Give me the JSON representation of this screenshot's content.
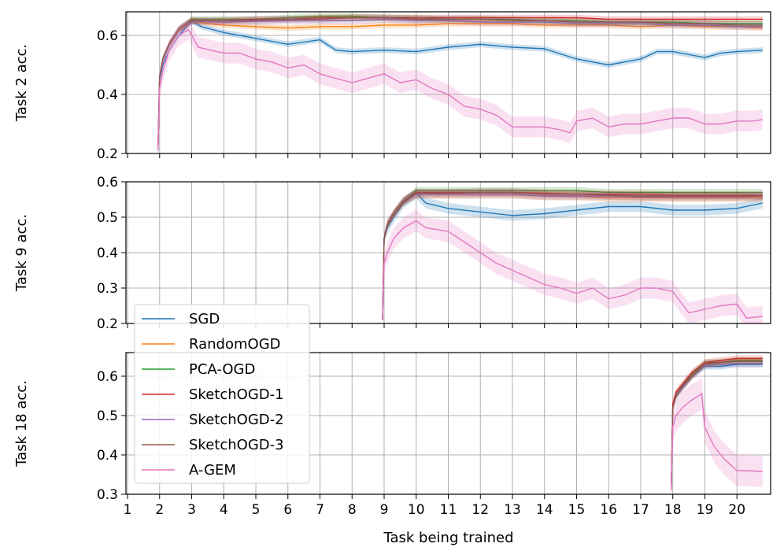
{
  "chart_data": {
    "type": "line",
    "xlabel": "Task being trained",
    "x_ticks": [
      1,
      2,
      3,
      4,
      5,
      6,
      7,
      8,
      9,
      10,
      11,
      12,
      13,
      14,
      15,
      16,
      17,
      18,
      19,
      20
    ],
    "x_range": [
      0.95,
      21.05
    ],
    "grid": true,
    "legend": {
      "position": "bottom-left",
      "entries": [
        "SGD",
        "RandomOGD",
        "PCA-OGD",
        "SketchOGD-1",
        "SketchOGD-2",
        "SketchOGD-3",
        "A-GEM"
      ]
    },
    "colors": {
      "SGD": "#1f77b4",
      "RandomOGD": "#ff7f0e",
      "PCA-OGD": "#2ca02c",
      "SketchOGD-1": "#d62728",
      "SketchOGD-2": "#9467bd",
      "SketchOGD-3": "#8c564b",
      "A-GEM": "#e377c2"
    },
    "panels": [
      {
        "ylabel": "Task 2 acc.",
        "ylim": [
          0.2,
          0.68
        ],
        "yticks": [
          0.2,
          0.4,
          0.6
        ],
        "ytick_labels": [
          "0.2",
          "0.4",
          "0.6"
        ],
        "series": [
          {
            "name": "SGD",
            "x": [
              1.95,
              2,
              2.1,
              2.3,
              2.6,
              3,
              3.3,
              4,
              5,
              6,
              7,
              7.5,
              8,
              9,
              10,
              11,
              12,
              13,
              14,
              15,
              16,
              17,
              17.5,
              18,
              19,
              19.5,
              20,
              20.8
            ],
            "y": [
              0.21,
              0.45,
              0.5,
              0.55,
              0.6,
              0.648,
              0.63,
              0.61,
              0.59,
              0.57,
              0.585,
              0.55,
              0.545,
              0.55,
              0.545,
              0.56,
              0.57,
              0.56,
              0.555,
              0.52,
              0.5,
              0.52,
              0.545,
              0.545,
              0.525,
              0.54,
              0.545,
              0.55
            ],
            "band": 0.01
          },
          {
            "name": "RandomOGD",
            "x": [
              1.95,
              2,
              2.1,
              2.3,
              2.6,
              3,
              3.5,
              4,
              5,
              6,
              7,
              8,
              9,
              10,
              11,
              12,
              13,
              14,
              15,
              16,
              17,
              18,
              19,
              20,
              20.8
            ],
            "y": [
              0.21,
              0.46,
              0.52,
              0.57,
              0.62,
              0.65,
              0.64,
              0.635,
              0.63,
              0.625,
              0.63,
              0.63,
              0.635,
              0.635,
              0.64,
              0.64,
              0.64,
              0.635,
              0.635,
              0.635,
              0.63,
              0.635,
              0.63,
              0.63,
              0.625
            ],
            "band": 0.01
          },
          {
            "name": "PCA-OGD",
            "x": [
              1.95,
              2,
              2.1,
              2.3,
              2.6,
              3,
              4,
              5,
              6,
              7,
              8,
              9,
              10,
              11,
              12,
              13,
              14,
              15,
              16,
              17,
              18,
              19,
              20,
              20.8
            ],
            "y": [
              0.21,
              0.46,
              0.52,
              0.57,
              0.62,
              0.655,
              0.655,
              0.655,
              0.66,
              0.665,
              0.665,
              0.66,
              0.66,
              0.655,
              0.655,
              0.655,
              0.65,
              0.65,
              0.645,
              0.645,
              0.645,
              0.64,
              0.64,
              0.64
            ],
            "band": 0.01
          },
          {
            "name": "SketchOGD-1",
            "x": [
              1.95,
              2,
              2.1,
              2.3,
              2.6,
              3,
              4,
              5,
              6,
              7,
              8,
              9,
              10,
              11,
              12,
              13,
              14,
              15,
              16,
              17,
              18,
              19,
              20,
              20.8
            ],
            "y": [
              0.21,
              0.46,
              0.52,
              0.57,
              0.62,
              0.65,
              0.65,
              0.655,
              0.655,
              0.66,
              0.66,
              0.66,
              0.66,
              0.66,
              0.66,
              0.66,
              0.66,
              0.66,
              0.655,
              0.655,
              0.655,
              0.655,
              0.655,
              0.655
            ],
            "band": 0.01
          },
          {
            "name": "SketchOGD-2",
            "x": [
              1.95,
              2,
              2.1,
              2.3,
              2.6,
              3,
              4,
              5,
              6,
              7,
              8,
              9,
              10,
              11,
              12,
              13,
              14,
              15,
              16,
              17,
              18,
              19,
              20,
              20.8
            ],
            "y": [
              0.21,
              0.46,
              0.52,
              0.57,
              0.62,
              0.648,
              0.645,
              0.648,
              0.65,
              0.65,
              0.65,
              0.655,
              0.65,
              0.65,
              0.645,
              0.645,
              0.645,
              0.64,
              0.64,
              0.64,
              0.635,
              0.635,
              0.63,
              0.63
            ],
            "band": 0.012
          },
          {
            "name": "SketchOGD-3",
            "x": [
              1.95,
              2,
              2.1,
              2.3,
              2.6,
              3,
              4,
              5,
              6,
              7,
              8,
              9,
              10,
              11,
              12,
              13,
              14,
              15,
              16,
              17,
              18,
              19,
              20,
              20.8
            ],
            "y": [
              0.21,
              0.46,
              0.52,
              0.57,
              0.62,
              0.65,
              0.65,
              0.652,
              0.655,
              0.655,
              0.66,
              0.66,
              0.655,
              0.655,
              0.655,
              0.65,
              0.65,
              0.645,
              0.645,
              0.645,
              0.64,
              0.64,
              0.635,
              0.635
            ],
            "band": 0.012
          },
          {
            "name": "A-GEM",
            "x": [
              1.95,
              2,
              2.1,
              2.3,
              2.6,
              2.9,
              3.2,
              4,
              4.5,
              5,
              5.5,
              6,
              6.5,
              7,
              7.3,
              8,
              9,
              9.5,
              10,
              10.5,
              11,
              11.5,
              12,
              12.5,
              13,
              13.5,
              14,
              14.5,
              14.8,
              15,
              15.5,
              16,
              16.5,
              17,
              17.5,
              18,
              18.5,
              19,
              19.5,
              20,
              20.5,
              20.8
            ],
            "y": [
              0.21,
              0.42,
              0.48,
              0.55,
              0.6,
              0.62,
              0.56,
              0.54,
              0.54,
              0.52,
              0.51,
              0.49,
              0.5,
              0.47,
              0.46,
              0.44,
              0.47,
              0.44,
              0.45,
              0.42,
              0.4,
              0.36,
              0.35,
              0.33,
              0.29,
              0.29,
              0.29,
              0.28,
              0.27,
              0.31,
              0.32,
              0.29,
              0.3,
              0.3,
              0.31,
              0.32,
              0.32,
              0.3,
              0.3,
              0.31,
              0.31,
              0.315
            ],
            "band": 0.035
          }
        ]
      },
      {
        "ylabel": "Task 9 acc.",
        "ylim": [
          0.2,
          0.6
        ],
        "yticks": [
          0.2,
          0.3,
          0.4,
          0.5,
          0.6
        ],
        "ytick_labels": [
          "0.2",
          "0.3",
          "0.4",
          "0.5",
          "0.6"
        ],
        "series": [
          {
            "name": "SGD",
            "x": [
              8.95,
              9,
              9.1,
              9.3,
              9.6,
              10,
              10.3,
              11,
              12,
              13,
              14,
              15,
              16,
              17,
              18,
              19,
              20,
              20.8
            ],
            "y": [
              0.21,
              0.44,
              0.47,
              0.5,
              0.54,
              0.568,
              0.54,
              0.525,
              0.515,
              0.505,
              0.51,
              0.52,
              0.53,
              0.53,
              0.52,
              0.52,
              0.525,
              0.54
            ],
            "band": 0.015
          },
          {
            "name": "RandomOGD",
            "x": [
              8.95,
              9,
              9.1,
              9.3,
              9.6,
              10,
              11,
              12,
              13,
              14,
              15,
              16,
              17,
              18,
              19,
              20,
              20.8
            ],
            "y": [
              0.21,
              0.44,
              0.48,
              0.51,
              0.545,
              0.565,
              0.565,
              0.565,
              0.565,
              0.56,
              0.56,
              0.555,
              0.555,
              0.555,
              0.555,
              0.555,
              0.555
            ],
            "band": 0.012
          },
          {
            "name": "PCA-OGD",
            "x": [
              8.95,
              9,
              9.1,
              9.3,
              9.6,
              10,
              11,
              12,
              13,
              14,
              15,
              16,
              17,
              18,
              19,
              20,
              20.8
            ],
            "y": [
              0.21,
              0.44,
              0.48,
              0.51,
              0.545,
              0.575,
              0.575,
              0.575,
              0.575,
              0.575,
              0.575,
              0.57,
              0.57,
              0.57,
              0.57,
              0.57,
              0.57
            ],
            "band": 0.01
          },
          {
            "name": "SketchOGD-1",
            "x": [
              8.95,
              9,
              9.1,
              9.3,
              9.6,
              10,
              11,
              12,
              13,
              14,
              15,
              16,
              17,
              18,
              19,
              20,
              20.8
            ],
            "y": [
              0.21,
              0.44,
              0.48,
              0.51,
              0.545,
              0.57,
              0.57,
              0.57,
              0.57,
              0.568,
              0.565,
              0.565,
              0.565,
              0.562,
              0.562,
              0.562,
              0.562
            ],
            "band": 0.01
          },
          {
            "name": "SketchOGD-2",
            "x": [
              8.95,
              9,
              9.1,
              9.3,
              9.6,
              10,
              11,
              12,
              13,
              14,
              15,
              16,
              17,
              18,
              19,
              20,
              20.8
            ],
            "y": [
              0.21,
              0.44,
              0.48,
              0.51,
              0.545,
              0.565,
              0.565,
              0.565,
              0.565,
              0.56,
              0.56,
              0.56,
              0.558,
              0.558,
              0.558,
              0.558,
              0.56
            ],
            "band": 0.012
          },
          {
            "name": "SketchOGD-3",
            "x": [
              8.95,
              9,
              9.1,
              9.3,
              9.6,
              10,
              11,
              12,
              13,
              14,
              15,
              16,
              17,
              18,
              19,
              20,
              20.8
            ],
            "y": [
              0.21,
              0.44,
              0.48,
              0.51,
              0.545,
              0.568,
              0.568,
              0.57,
              0.57,
              0.565,
              0.565,
              0.562,
              0.56,
              0.56,
              0.56,
              0.56,
              0.56
            ],
            "band": 0.012
          },
          {
            "name": "A-GEM",
            "x": [
              8.95,
              9,
              9.1,
              9.3,
              9.6,
              10,
              10.3,
              11,
              11.5,
              12,
              12.5,
              13,
              13.5,
              14,
              14.5,
              15,
              15.5,
              16,
              16.5,
              17,
              17.5,
              18,
              18.5,
              19,
              19.5,
              20,
              20.3,
              20.8
            ],
            "y": [
              0.21,
              0.37,
              0.4,
              0.44,
              0.47,
              0.49,
              0.47,
              0.46,
              0.43,
              0.4,
              0.37,
              0.35,
              0.33,
              0.31,
              0.3,
              0.285,
              0.3,
              0.27,
              0.28,
              0.3,
              0.3,
              0.29,
              0.23,
              0.24,
              0.25,
              0.255,
              0.215,
              0.22
            ],
            "band": 0.03
          }
        ]
      },
      {
        "ylabel": "Task 18 acc.",
        "ylim": [
          0.3,
          0.66
        ],
        "yticks": [
          0.3,
          0.4,
          0.5,
          0.6
        ],
        "ytick_labels": [
          "0.3",
          "0.4",
          "0.5",
          "0.6"
        ],
        "series": [
          {
            "name": "SGD",
            "x": [
              17.95,
              18,
              18.1,
              18.3,
              18.6,
              19,
              19.5,
              20,
              20.8
            ],
            "y": [
              0.31,
              0.52,
              0.55,
              0.57,
              0.6,
              0.625,
              0.625,
              0.63,
              0.63
            ],
            "band": 0.008
          },
          {
            "name": "RandomOGD",
            "x": [
              17.95,
              18,
              18.1,
              18.3,
              18.6,
              19,
              19.5,
              20,
              20.8
            ],
            "y": [
              0.31,
              0.52,
              0.55,
              0.57,
              0.6,
              0.63,
              0.635,
              0.64,
              0.64
            ],
            "band": 0.008
          },
          {
            "name": "PCA-OGD",
            "x": [
              17.95,
              18,
              18.1,
              18.3,
              18.6,
              19,
              19.5,
              20,
              20.8
            ],
            "y": [
              0.31,
              0.52,
              0.55,
              0.575,
              0.605,
              0.635,
              0.635,
              0.64,
              0.64
            ],
            "band": 0.008
          },
          {
            "name": "SketchOGD-1",
            "x": [
              17.95,
              18,
              18.1,
              18.3,
              18.6,
              19,
              19.5,
              20,
              20.8
            ],
            "y": [
              0.31,
              0.53,
              0.56,
              0.58,
              0.61,
              0.635,
              0.64,
              0.645,
              0.645
            ],
            "band": 0.008
          },
          {
            "name": "SketchOGD-2",
            "x": [
              17.95,
              18,
              18.1,
              18.3,
              18.6,
              19,
              19.5,
              20,
              20.8
            ],
            "y": [
              0.31,
              0.52,
              0.55,
              0.57,
              0.6,
              0.628,
              0.63,
              0.632,
              0.632
            ],
            "band": 0.008
          },
          {
            "name": "SketchOGD-3",
            "x": [
              17.95,
              18,
              18.1,
              18.3,
              18.6,
              19,
              19.5,
              20,
              20.8
            ],
            "y": [
              0.31,
              0.52,
              0.55,
              0.575,
              0.6,
              0.632,
              0.635,
              0.638,
              0.638
            ],
            "band": 0.008
          },
          {
            "name": "A-GEM",
            "x": [
              17.95,
              18,
              18.1,
              18.3,
              18.6,
              18.9,
              19,
              19.3,
              19.6,
              20,
              20.3,
              20.8
            ],
            "y": [
              0.31,
              0.47,
              0.5,
              0.52,
              0.54,
              0.555,
              0.47,
              0.42,
              0.39,
              0.36,
              0.36,
              0.358
            ],
            "band": 0.04
          }
        ]
      }
    ]
  }
}
